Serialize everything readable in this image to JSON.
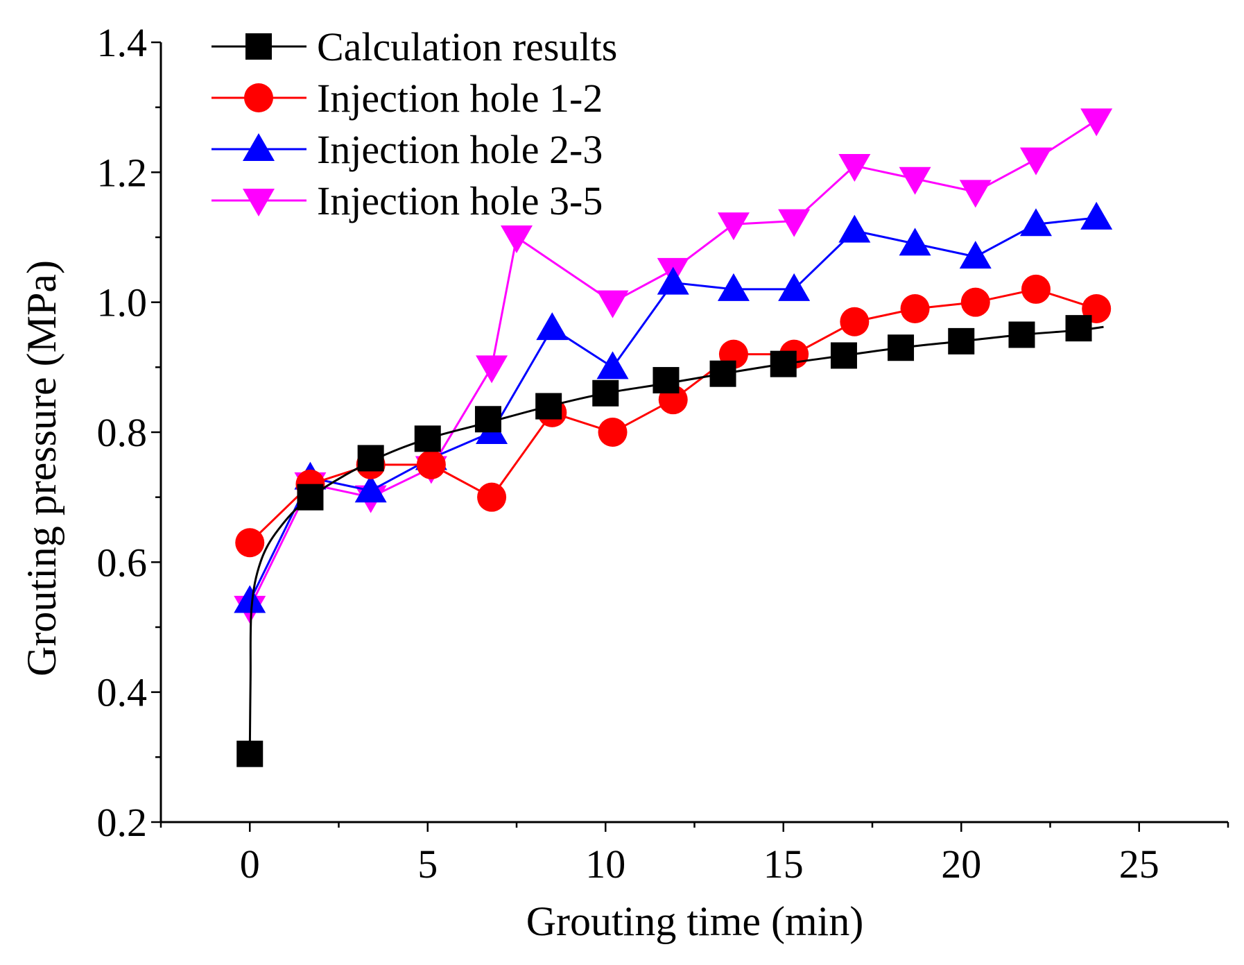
{
  "chart_data": {
    "type": "line",
    "xlabel": "Grouting time (min)",
    "ylabel": "Grouting pressure (MPa)",
    "xlim": [
      -2.5,
      27.5
    ],
    "ylim": [
      0.2,
      1.4
    ],
    "xticks": [
      0,
      5,
      10,
      15,
      20,
      25
    ],
    "xtick_labels": [
      "0",
      "5",
      "10",
      "15",
      "20",
      "25"
    ],
    "yticks": [
      0.2,
      0.4,
      0.6,
      0.8,
      1.0,
      1.2,
      1.4
    ],
    "ytick_labels": [
      "0.2",
      "0.4",
      "0.6",
      "0.8",
      "1.0",
      "1.2",
      "1.4"
    ],
    "grid": false,
    "legend_position": "top-left",
    "series": [
      {
        "name": "Calculation results",
        "color": "#000000",
        "marker": "square",
        "x": [
          0,
          1.7,
          3.4,
          5.0,
          6.7,
          8.4,
          10.0,
          11.7,
          13.3,
          15.0,
          16.7,
          18.3,
          20.0,
          21.7,
          23.3
        ],
        "y": [
          0.305,
          0.7,
          0.76,
          0.79,
          0.82,
          0.84,
          0.86,
          0.88,
          0.89,
          0.905,
          0.918,
          0.93,
          0.94,
          0.95,
          0.96
        ],
        "fit_curve": [
          [
            0,
            0.305
          ],
          [
            0.02,
            0.42
          ],
          [
            0.05,
            0.53
          ],
          [
            0.3,
            0.6
          ],
          [
            0.8,
            0.65
          ],
          [
            1.7,
            0.7
          ],
          [
            3.4,
            0.755
          ],
          [
            5.0,
            0.79
          ],
          [
            6.7,
            0.815
          ],
          [
            8.4,
            0.84
          ],
          [
            10.0,
            0.86
          ],
          [
            11.7,
            0.875
          ],
          [
            13.3,
            0.89
          ],
          [
            15.0,
            0.905
          ],
          [
            16.7,
            0.918
          ],
          [
            18.3,
            0.93
          ],
          [
            20.0,
            0.94
          ],
          [
            21.7,
            0.95
          ],
          [
            23.3,
            0.957
          ],
          [
            24.0,
            0.962
          ]
        ]
      },
      {
        "name": "Injection hole 1-2",
        "color": "#ff0000",
        "marker": "circle",
        "x": [
          0,
          1.7,
          3.4,
          5.1,
          6.8,
          8.5,
          10.2,
          11.9,
          13.6,
          15.3,
          17.0,
          18.7,
          20.4,
          22.1,
          23.8
        ],
        "y": [
          0.63,
          0.72,
          0.75,
          0.75,
          0.7,
          0.83,
          0.8,
          0.85,
          0.92,
          0.92,
          0.97,
          0.99,
          1.0,
          1.02,
          0.99
        ]
      },
      {
        "name": "Injection hole 2-3",
        "color": "#0000ff",
        "marker": "triangle-up",
        "x": [
          0,
          1.7,
          3.4,
          5.1,
          6.8,
          8.5,
          10.2,
          11.9,
          13.6,
          15.3,
          17.0,
          18.7,
          20.4,
          22.1,
          23.8
        ],
        "y": [
          0.54,
          0.73,
          0.71,
          0.76,
          0.8,
          0.96,
          0.9,
          1.03,
          1.02,
          1.02,
          1.11,
          1.09,
          1.07,
          1.12,
          1.13
        ]
      },
      {
        "name": "Injection hole 3-5",
        "color": "#ff00ff",
        "marker": "triangle-down",
        "x": [
          0,
          1.7,
          3.4,
          5.1,
          6.8,
          7.5,
          10.2,
          11.9,
          13.6,
          15.3,
          17.0,
          18.7,
          20.4,
          22.1,
          23.8
        ],
        "y": [
          0.53,
          0.72,
          0.7,
          0.745,
          0.9,
          1.1,
          1.0,
          1.05,
          1.12,
          1.125,
          1.21,
          1.19,
          1.17,
          1.22,
          1.28
        ]
      }
    ]
  }
}
